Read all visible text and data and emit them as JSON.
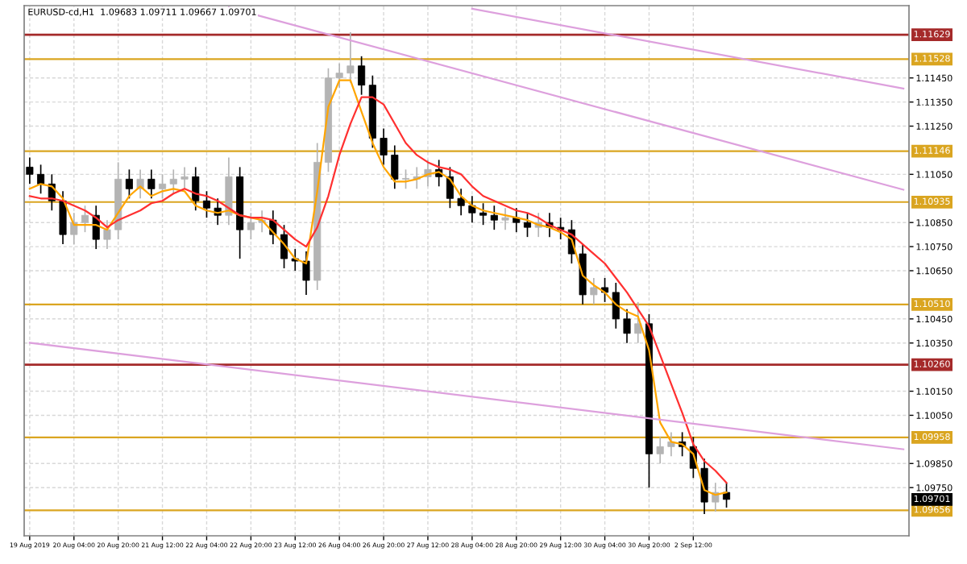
{
  "chart_data": {
    "type": "candlestick",
    "title": "EURUSD-cd,H1  1.09683 1.09711 1.09667 1.09701",
    "categories": [
      "19 Aug 2019",
      null,
      null,
      null,
      "20 Aug 04:00",
      null,
      null,
      null,
      "20 Aug 20:00",
      null,
      null,
      null,
      "21 Aug 12:00",
      null,
      null,
      null,
      "22 Aug 04:00",
      null,
      null,
      null,
      "22 Aug 20:00",
      null,
      null,
      null,
      "23 Aug 12:00",
      null,
      null,
      null,
      "26 Aug 04:00",
      null,
      null,
      null,
      "26 Aug 20:00",
      null,
      null,
      null,
      "27 Aug 12:00",
      null,
      null,
      null,
      "28 Aug 04:00",
      null,
      null,
      null,
      "28 Aug 20:00",
      null,
      null,
      null,
      "29 Aug 12:00",
      null,
      null,
      null,
      "30 Aug 04:00",
      null,
      null,
      null,
      "30 Aug 20:00",
      null,
      null,
      null,
      "2 Sep 12:00",
      null,
      null,
      null,
      null,
      null,
      null,
      null,
      null,
      null,
      null,
      null,
      null,
      null,
      null,
      null,
      null,
      null,
      null,
      null
    ],
    "ohlc": [
      [
        1.1108,
        1.1112,
        1.1101,
        1.1105
      ],
      [
        1.1105,
        1.1109,
        1.1097,
        1.1101
      ],
      [
        1.1101,
        1.1105,
        1.109,
        1.1094
      ],
      [
        1.1094,
        1.1098,
        1.1076,
        1.108
      ],
      [
        1.108,
        1.1089,
        1.1076,
        1.1085
      ],
      [
        1.1085,
        1.1092,
        1.1081,
        1.1088
      ],
      [
        1.1088,
        1.1092,
        1.1074,
        1.1078
      ],
      [
        1.1078,
        1.1086,
        1.1074,
        1.1082
      ],
      [
        1.1082,
        1.111,
        1.1078,
        1.1103
      ],
      [
        1.1103,
        1.1107,
        1.1095,
        1.1099
      ],
      [
        1.1099,
        1.1107,
        1.1095,
        1.1103
      ],
      [
        1.1103,
        1.1107,
        1.1095,
        1.1099
      ],
      [
        1.1099,
        1.1105,
        1.1095,
        1.1101
      ],
      [
        1.1101,
        1.1107,
        1.1097,
        1.1103
      ],
      [
        1.1103,
        1.1108,
        1.1099,
        1.1104
      ],
      [
        1.1104,
        1.1108,
        1.109,
        1.1094
      ],
      [
        1.1094,
        1.1098,
        1.1087,
        1.1091
      ],
      [
        1.1091,
        1.1095,
        1.1084,
        1.1088
      ],
      [
        1.1088,
        1.1112,
        1.1084,
        1.1104
      ],
      [
        1.1104,
        1.1108,
        1.107,
        1.1082
      ],
      [
        1.1082,
        1.1089,
        1.1078,
        1.1085
      ],
      [
        1.1085,
        1.109,
        1.1081,
        1.1086
      ],
      [
        1.1086,
        1.109,
        1.1076,
        1.108
      ],
      [
        1.108,
        1.1084,
        1.1066,
        1.107
      ],
      [
        1.107,
        1.1074,
        1.1065,
        1.1069
      ],
      [
        1.1069,
        1.1073,
        1.1055,
        1.1061
      ],
      [
        1.1061,
        1.1118,
        1.1057,
        1.111
      ],
      [
        1.111,
        1.1149,
        1.1106,
        1.1145
      ],
      [
        1.1145,
        1.1151,
        1.1141,
        1.1147
      ],
      [
        1.1147,
        1.1164,
        1.1143,
        1.115
      ],
      [
        1.115,
        1.1154,
        1.1138,
        1.1142
      ],
      [
        1.1142,
        1.1146,
        1.1116,
        1.112
      ],
      [
        1.112,
        1.1124,
        1.1109,
        1.1113
      ],
      [
        1.1113,
        1.1117,
        1.1099,
        1.1103
      ],
      [
        1.1103,
        1.1107,
        1.1099,
        1.1103
      ],
      [
        1.1103,
        1.1108,
        1.1099,
        1.1104
      ],
      [
        1.1104,
        1.1111,
        1.11,
        1.1107
      ],
      [
        1.1107,
        1.1111,
        1.11,
        1.1104
      ],
      [
        1.1104,
        1.1108,
        1.1091,
        1.1095
      ],
      [
        1.1095,
        1.1099,
        1.1088,
        1.1092
      ],
      [
        1.1092,
        1.1096,
        1.1085,
        1.1089
      ],
      [
        1.1089,
        1.1093,
        1.1084,
        1.1088
      ],
      [
        1.1088,
        1.1092,
        1.1082,
        1.1086
      ],
      [
        1.1086,
        1.1091,
        1.1082,
        1.1087
      ],
      [
        1.1087,
        1.1091,
        1.1081,
        1.1085
      ],
      [
        1.1085,
        1.1089,
        1.1079,
        1.1083
      ],
      [
        1.1083,
        1.1089,
        1.1079,
        1.1085
      ],
      [
        1.1085,
        1.1089,
        1.1079,
        1.1083
      ],
      [
        1.1083,
        1.1087,
        1.1078,
        1.1082
      ],
      [
        1.1082,
        1.1086,
        1.1068,
        1.1072
      ],
      [
        1.1072,
        1.1076,
        1.1051,
        1.1055
      ],
      [
        1.1055,
        1.1062,
        1.1051,
        1.1058
      ],
      [
        1.1058,
        1.1062,
        1.1052,
        1.1056
      ],
      [
        1.1056,
        1.106,
        1.1041,
        1.1045
      ],
      [
        1.1045,
        1.1049,
        1.1035,
        1.1039
      ],
      [
        1.1039,
        1.1052,
        1.1035,
        1.1043
      ],
      [
        1.1043,
        1.1047,
        1.0975,
        1.0989
      ],
      [
        1.0989,
        1.0996,
        1.0985,
        1.0992
      ],
      [
        1.0992,
        1.0998,
        1.0988,
        1.0994
      ],
      [
        1.0994,
        1.0998,
        1.0988,
        1.0992
      ],
      [
        1.0992,
        1.0996,
        1.0979,
        1.0983
      ],
      [
        1.0983,
        1.0987,
        1.0964,
        1.0969
      ],
      [
        1.0969,
        1.0977,
        1.0965,
        1.0973
      ],
      [
        1.0973,
        1.0977,
        1.09667,
        1.09701
      ],
      null,
      null,
      null,
      null,
      null,
      null,
      null,
      null,
      null,
      null,
      null,
      null,
      null,
      null,
      null,
      null
    ],
    "colors": [
      "#000000",
      "#000000",
      "#000000",
      "#000000",
      "#b4b4b4",
      "#b4b4b4",
      "#000000",
      "#b4b4b4",
      "#b4b4b4",
      "#000000",
      "#b4b4b4",
      "#000000",
      "#b4b4b4",
      "#b4b4b4",
      "#b4b4b4",
      "#000000",
      "#000000",
      "#000000",
      "#b4b4b4",
      "#000000",
      "#b4b4b4",
      "#b4b4b4",
      "#000000",
      "#000000",
      "#000000",
      "#000000",
      "#b4b4b4",
      "#b4b4b4",
      "#b4b4b4",
      "#b4b4b4",
      "#000000",
      "#000000",
      "#000000",
      "#000000",
      "#b4b4b4",
      "#b4b4b4",
      "#b4b4b4",
      "#000000",
      "#000000",
      "#000000",
      "#000000",
      "#000000",
      "#000000",
      "#b4b4b4",
      "#000000",
      "#000000",
      "#b4b4b4",
      "#000000",
      "#000000",
      "#000000",
      "#000000",
      "#b4b4b4",
      "#000000",
      "#000000",
      "#000000",
      "#b4b4b4",
      "#000000",
      "#b4b4b4",
      "#b4b4b4",
      "#000000",
      "#000000",
      "#000000",
      "#b4b4b4",
      "#000000",
      null,
      null,
      null,
      null,
      null,
      null,
      null,
      null,
      null,
      null,
      null,
      null,
      null,
      null,
      null,
      null
    ],
    "series": [
      {
        "type": "line",
        "color": "#ffa500",
        "values": [
          1.1099,
          1.1101,
          1.11,
          1.1095,
          1.1084,
          1.1084,
          1.1084,
          1.1082,
          1.1089,
          1.1096,
          1.11,
          1.1096,
          1.1098,
          1.1099,
          1.1098,
          1.1092,
          1.109,
          1.1089,
          1.109,
          1.1088,
          1.1087,
          1.1086,
          1.1081,
          1.1076,
          1.107,
          1.1068,
          1.1098,
          1.1133,
          1.1144,
          1.1144,
          1.1131,
          1.1118,
          1.1108,
          1.1102,
          1.1102,
          1.1103,
          1.1105,
          1.1106,
          1.1103,
          1.1096,
          1.1092,
          1.109,
          1.1089,
          1.1088,
          1.1087,
          1.1086,
          1.1084,
          1.1083,
          1.1081,
          1.1078,
          1.1063,
          1.1059,
          1.1056,
          1.1051,
          1.1048,
          1.1046,
          1.1032,
          1.1002,
          1.0994,
          1.0993,
          1.0989,
          1.0974,
          1.0972,
          1.0973,
          null,
          null,
          null,
          null,
          null,
          null,
          null,
          null,
          null,
          null,
          null,
          null,
          null,
          null,
          null,
          null
        ]
      },
      {
        "type": "line",
        "color": "#ff3030",
        "values": [
          1.1096,
          1.1095,
          1.1095,
          1.1094,
          1.1092,
          1.109,
          1.1087,
          1.1083,
          1.1086,
          1.1088,
          1.109,
          1.1093,
          1.1094,
          1.1097,
          1.1099,
          1.1097,
          1.1096,
          1.1094,
          1.1091,
          1.1088,
          1.1087,
          1.1087,
          1.1086,
          1.1082,
          1.1078,
          1.1075,
          1.1083,
          1.1096,
          1.1113,
          1.1126,
          1.1137,
          1.1137,
          1.1134,
          1.1126,
          1.1118,
          1.1113,
          1.111,
          1.1108,
          1.1107,
          1.1105,
          1.11,
          1.1096,
          1.1094,
          1.1092,
          1.109,
          1.1089,
          1.1087,
          1.1084,
          1.1082,
          1.108,
          1.1076,
          1.1072,
          1.1068,
          1.1062,
          1.1056,
          1.1049,
          1.1042,
          1.103,
          1.1018,
          1.1006,
          1.0993,
          1.0986,
          1.0982,
          1.0977,
          null,
          null,
          null,
          null,
          null,
          null,
          null,
          null,
          null,
          null,
          null,
          null,
          null,
          null,
          null,
          null
        ]
      },
      {
        "type": "line",
        "color": "#dda0dd",
        "values": [
          null,
          null,
          null,
          null,
          null,
          null,
          null,
          null,
          null,
          null,
          null,
          null,
          null,
          null,
          null,
          null,
          null,
          null,
          1.11742,
          null,
          null,
          null,
          null,
          null,
          null,
          null,
          null,
          null,
          null,
          null,
          null,
          null,
          null,
          null,
          null,
          null,
          null,
          null,
          null,
          null,
          null,
          null,
          null,
          null,
          null,
          null,
          null,
          null,
          null,
          null,
          null,
          null,
          null,
          null,
          null,
          null,
          null,
          null,
          null,
          null,
          null,
          null,
          null,
          null,
          null,
          null,
          null,
          null,
          null,
          null,
          null,
          null,
          null,
          null,
          null,
          null,
          null,
          null,
          null,
          1.10986
        ]
      },
      {
        "type": "line",
        "color": "#dda0dd",
        "values": [
          null,
          null,
          null,
          null,
          null,
          null,
          null,
          null,
          null,
          null,
          null,
          null,
          null,
          null,
          null,
          null,
          null,
          null,
          null,
          null,
          null,
          null,
          null,
          null,
          null,
          null,
          null,
          null,
          null,
          null,
          null,
          null,
          null,
          null,
          null,
          null,
          null,
          null,
          null,
          null,
          1.11737,
          null,
          null,
          null,
          null,
          null,
          null,
          null,
          null,
          null,
          null,
          null,
          null,
          null,
          null,
          null,
          null,
          null,
          null,
          null,
          null,
          null,
          null,
          null,
          null,
          null,
          null,
          null,
          null,
          null,
          null,
          null,
          null,
          null,
          null,
          null,
          null,
          null,
          null,
          1.11406
        ]
      },
      {
        "type": "line",
        "color": "#dda0dd",
        "values": [
          1.10351,
          null,
          null,
          null,
          null,
          null,
          null,
          null,
          null,
          null,
          null,
          null,
          null,
          null,
          null,
          null,
          null,
          null,
          null,
          null,
          null,
          null,
          null,
          null,
          null,
          null,
          null,
          null,
          null,
          null,
          null,
          null,
          null,
          null,
          null,
          null,
          null,
          null,
          null,
          null,
          null,
          null,
          null,
          null,
          null,
          null,
          null,
          null,
          null,
          null,
          null,
          null,
          null,
          null,
          null,
          null,
          null,
          null,
          null,
          null,
          null,
          null,
          null,
          null,
          null,
          null,
          null,
          null,
          null,
          null,
          null,
          null,
          null,
          null,
          null,
          null,
          null,
          null,
          null,
          1.09909
        ]
      }
    ],
    "ref_lines": [
      {
        "axis": "y",
        "value": 1.11629,
        "label": "1.11629",
        "color": "#a52a2a"
      },
      {
        "axis": "y",
        "value": 1.11528,
        "label": "1.11528",
        "color": "#daa520"
      },
      {
        "axis": "y",
        "value": 1.11146,
        "label": "1.11146",
        "color": "#daa520"
      },
      {
        "axis": "y",
        "value": 1.10935,
        "label": "1.10935",
        "color": "#daa520"
      },
      {
        "axis": "y",
        "value": 1.1051,
        "label": "1.10510",
        "color": "#daa520"
      },
      {
        "axis": "y",
        "value": 1.1026,
        "label": "1.10260",
        "color": "#a52a2a"
      },
      {
        "axis": "y",
        "value": 1.09958,
        "label": "1.09958",
        "color": "#daa520"
      },
      {
        "axis": "y",
        "value": 1.09656,
        "label": "1.09656",
        "color": "#daa520"
      }
    ],
    "annotations": [
      "1.09701"
    ],
    "ylim": [
      1.0955,
      1.1175
    ],
    "yticks": [
      {
        "value": 1.1145,
        "label": "1.11450"
      },
      {
        "value": 1.1135,
        "label": "1.11350"
      },
      {
        "value": 1.1125,
        "label": "1.11250"
      },
      {
        "value": 1.1105,
        "label": "1.11050"
      },
      {
        "value": 1.1085,
        "label": "1.10850"
      },
      {
        "value": 1.1075,
        "label": "1.10750"
      },
      {
        "value": 1.1065,
        "label": "1.10650"
      },
      {
        "value": 1.1045,
        "label": "1.10450"
      },
      {
        "value": 1.1035,
        "label": "1.10350"
      },
      {
        "value": 1.1015,
        "label": "1.10150"
      },
      {
        "value": 1.1005,
        "label": "1.10050"
      },
      {
        "value": 1.0985,
        "label": "1.09850"
      },
      {
        "value": 1.0975,
        "label": "1.09750"
      }
    ],
    "grid": true,
    "marker": "none",
    "line_style": "solid"
  }
}
